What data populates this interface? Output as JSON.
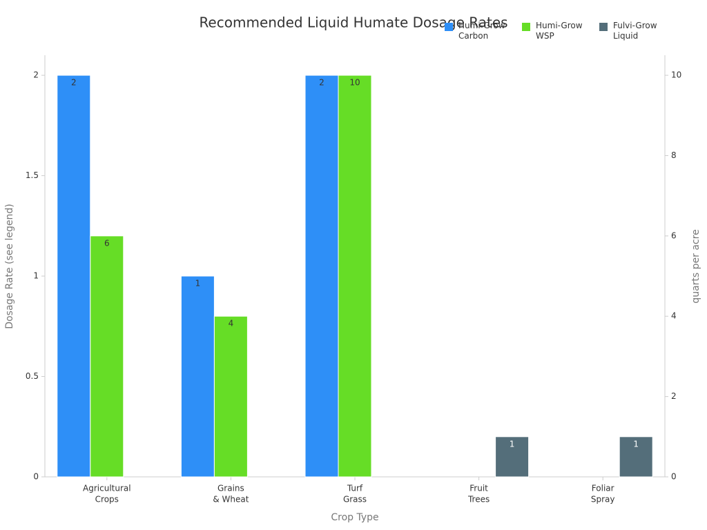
{
  "chart_data": {
    "type": "bar",
    "title": "Recommended Liquid Humate Dosage Rates",
    "x_label": "Crop Type",
    "y_label": "Dosage Rate (see legend)",
    "y2_label": "quarts per acre",
    "categories": [
      [
        "Agricultural",
        "Crops"
      ],
      [
        "Grains",
        "& Wheat"
      ],
      [
        "Turf",
        "Grass"
      ],
      [
        "Fruit",
        "Trees"
      ],
      [
        "Foliar",
        "Spray"
      ]
    ],
    "series": [
      {
        "name": "Humi-Grow Carbon",
        "color": "#2e8ff7",
        "values": [
          2,
          1,
          2,
          null,
          null
        ]
      },
      {
        "name": "Humi-Grow WSP",
        "color": "#66dd26",
        "axis": "y2",
        "values": [
          6,
          4,
          10,
          null,
          null
        ]
      },
      {
        "name": "Fulvi-Grow Liquid",
        "color": "#546e7a",
        "axis": "y2",
        "values": [
          null,
          null,
          null,
          1,
          1
        ]
      }
    ],
    "ylim": [
      0,
      2.1
    ],
    "yticks": [
      0,
      0.5,
      1,
      1.5,
      2
    ],
    "y2lim": [
      0,
      10.5
    ],
    "y2ticks": [
      0,
      2,
      4,
      6,
      8,
      10
    ],
    "legend": "top-right"
  }
}
